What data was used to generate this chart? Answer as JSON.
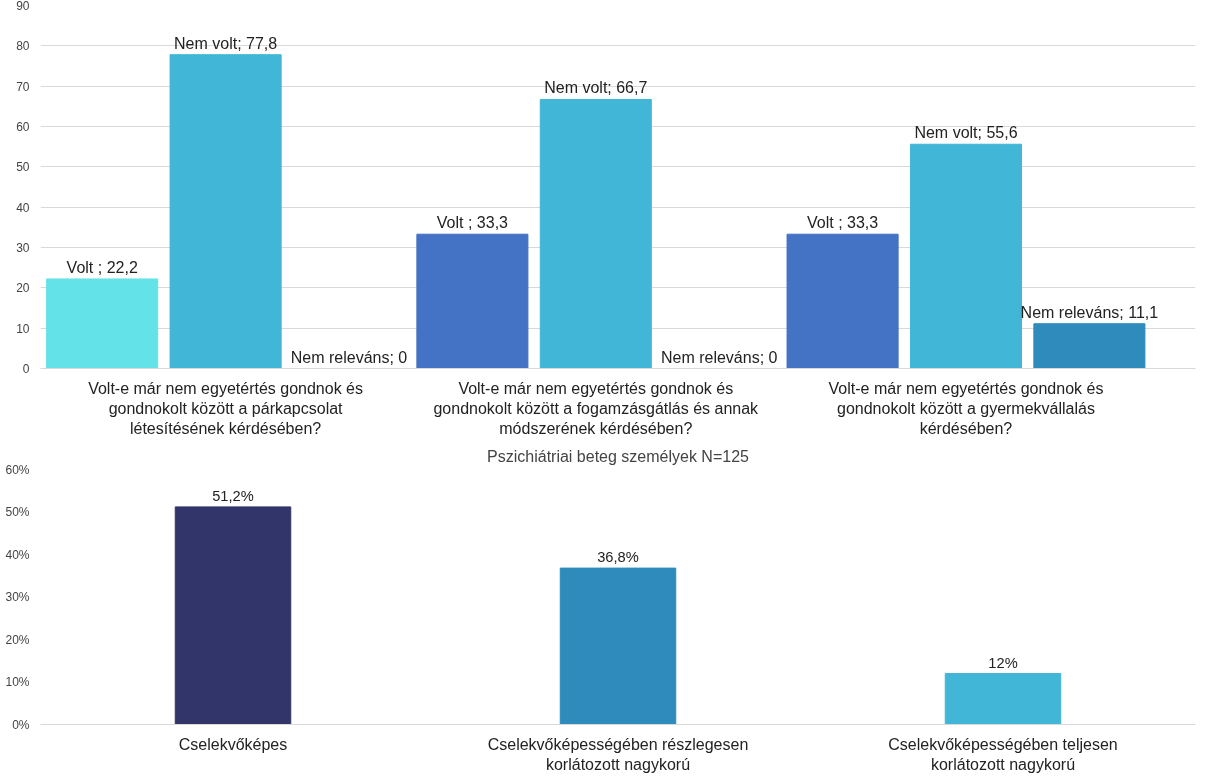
{
  "chart_data": [
    {
      "type": "bar",
      "categories": [
        "Volt-e már nem egyetértés gondnok és gondnokolt között a párkapcsolat létesítésének kérdésében?",
        "Volt-e már nem egyetértés gondnok és gondnokolt között a fogamzásgátlás és annak módszerének kérdésében?",
        "Volt-e már nem egyetértés gondnok és gondnokolt között a gyermekvállalás kérdésében?"
      ],
      "series": [
        {
          "colors": [
            "#63e2e8",
            "#4472c4",
            "#4472c4"
          ],
          "values": [
            22.2,
            33.3,
            33.3
          ],
          "value_labels": [
            "Volt ; 22,2",
            "Volt ; 33,3",
            "Volt ; 33,3"
          ]
        },
        {
          "color": "#41b6d6",
          "values": [
            77.8,
            66.7,
            55.6
          ],
          "value_labels": [
            "Nem volt; 77,8",
            "Nem volt; 66,7",
            "Nem volt; 55,6"
          ]
        },
        {
          "color": "#2e8bbc",
          "values": [
            0,
            0,
            11.1
          ],
          "value_labels": [
            "Nem releváns; 0",
            "Nem releváns; 0",
            "Nem releváns; 11,1"
          ]
        }
      ],
      "ylim": [
        0,
        90
      ],
      "yticks": [
        0,
        10,
        20,
        30,
        40,
        50,
        60,
        70,
        80,
        90
      ],
      "grid": "y"
    },
    {
      "type": "bar",
      "title": "Pszichiátriai beteg személyek N=125",
      "categories": [
        "Cselekvőképes",
        "Cselekvőképességében részlegesen korlátozott nagykorú",
        "Cselekvőképességében teljesen korlátozott nagykorú"
      ],
      "values": [
        51.2,
        36.8,
        12
      ],
      "colors": [
        "#313569",
        "#2e8bbc",
        "#41b6d6"
      ],
      "value_labels": [
        "51,2%",
        "36,8%",
        "12%"
      ],
      "ylim": [
        0,
        60
      ],
      "yticks": [
        {
          "value": 0,
          "label": "0%"
        },
        {
          "value": 10,
          "label": "10%"
        },
        {
          "value": 20,
          "label": "20%"
        },
        {
          "value": 30,
          "label": "30%"
        },
        {
          "value": 40,
          "label": "40%"
        },
        {
          "value": 50,
          "label": "50%"
        },
        {
          "value": 60,
          "label": "60%"
        }
      ],
      "grid": false
    }
  ]
}
